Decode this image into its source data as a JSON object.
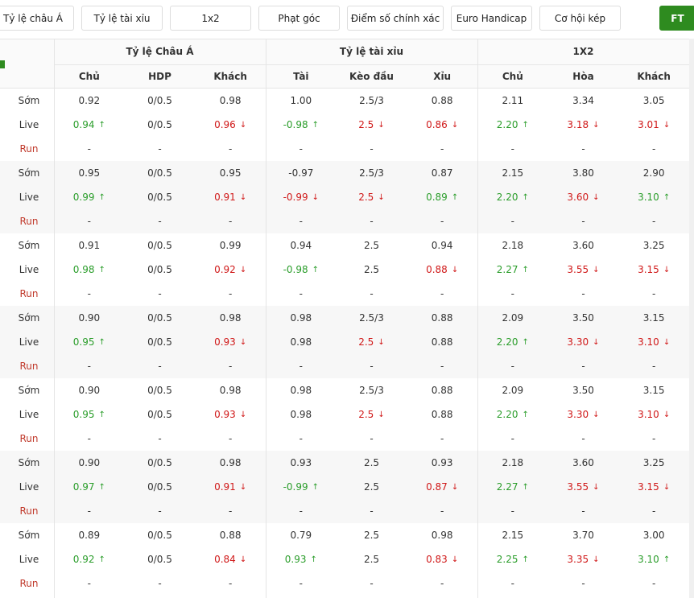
{
  "tabs": [
    "Tỷ lệ châu Á",
    "Tỷ lệ tài xỉu",
    "1x2",
    "Phạt góc",
    "Điểm số chính xác",
    "Euro Handicap",
    "Cơ hội kép"
  ],
  "ft_button": "FT",
  "groups": [
    "Tỷ lệ Châu Á",
    "Tỷ lệ tài xỉu",
    "1X2"
  ],
  "subheaders": [
    "Chủ",
    "HDP",
    "Khách",
    "Tài",
    "Kèo đầu",
    "Xỉu",
    "Chủ",
    "Hòa",
    "Khách"
  ],
  "blocks": [
    {
      "rows": [
        {
          "label": "Sớm",
          "cells": [
            "0.92",
            "0/0.5",
            "0.98",
            "1.00",
            "2.5/3",
            "0.88",
            "2.11",
            "3.34",
            "3.05"
          ]
        },
        {
          "label": "Live",
          "cells": [
            {
              "text": "0.94",
              "arrow": "↑"
            },
            "0/0.5",
            {
              "text": "0.96",
              "arrow": "↓"
            },
            {
              "text": "-0.98",
              "arrow": "↑"
            },
            {
              "text": "2.5",
              "arrow": "↓"
            },
            {
              "text": "0.86",
              "arrow": "↓"
            },
            {
              "text": "2.20",
              "arrow": "↑"
            },
            {
              "text": "3.18",
              "arrow": "↓"
            },
            {
              "text": "3.01",
              "arrow": "↓"
            }
          ]
        },
        {
          "label": "Run",
          "cells": [
            "-",
            "-",
            "-",
            "-",
            "-",
            "-",
            "-",
            "-",
            "-"
          ]
        }
      ]
    },
    {
      "rows": [
        {
          "label": "Sớm",
          "cells": [
            "0.95",
            "0/0.5",
            "0.95",
            "-0.97",
            "2.5/3",
            "0.87",
            "2.15",
            "3.80",
            "2.90"
          ]
        },
        {
          "label": "Live",
          "cells": [
            {
              "text": "0.99",
              "arrow": "↑"
            },
            "0/0.5",
            {
              "text": "0.91",
              "arrow": "↓"
            },
            {
              "text": "-0.99",
              "arrow": "↓"
            },
            {
              "text": "2.5",
              "arrow": "↓"
            },
            {
              "text": "0.89",
              "arrow": "↑"
            },
            {
              "text": "2.20",
              "arrow": "↑"
            },
            {
              "text": "3.60",
              "arrow": "↓"
            },
            {
              "text": "3.10",
              "arrow": "↑"
            }
          ]
        },
        {
          "label": "Run",
          "cells": [
            "-",
            "-",
            "-",
            "-",
            "-",
            "-",
            "-",
            "-",
            "-"
          ]
        }
      ]
    },
    {
      "rows": [
        {
          "label": "Sớm",
          "cells": [
            "0.91",
            "0/0.5",
            "0.99",
            "0.94",
            "2.5",
            "0.94",
            "2.18",
            "3.60",
            "3.25"
          ]
        },
        {
          "label": "Live",
          "cells": [
            {
              "text": "0.98",
              "arrow": "↑"
            },
            "0/0.5",
            {
              "text": "0.92",
              "arrow": "↓"
            },
            {
              "text": "-0.98",
              "arrow": "↑"
            },
            "2.5",
            {
              "text": "0.88",
              "arrow": "↓"
            },
            {
              "text": "2.27",
              "arrow": "↑"
            },
            {
              "text": "3.55",
              "arrow": "↓"
            },
            {
              "text": "3.15",
              "arrow": "↓"
            }
          ]
        },
        {
          "label": "Run",
          "cells": [
            "-",
            "-",
            "-",
            "-",
            "-",
            "-",
            "-",
            "-",
            "-"
          ]
        }
      ]
    },
    {
      "rows": [
        {
          "label": "Sớm",
          "cells": [
            "0.90",
            "0/0.5",
            "0.98",
            "0.98",
            "2.5/3",
            "0.88",
            "2.09",
            "3.50",
            "3.15"
          ]
        },
        {
          "label": "Live",
          "cells": [
            {
              "text": "0.95",
              "arrow": "↑"
            },
            "0/0.5",
            {
              "text": "0.93",
              "arrow": "↓"
            },
            "0.98",
            {
              "text": "2.5",
              "arrow": "↓"
            },
            "0.88",
            {
              "text": "2.20",
              "arrow": "↑"
            },
            {
              "text": "3.30",
              "arrow": "↓"
            },
            {
              "text": "3.10",
              "arrow": "↓"
            }
          ]
        },
        {
          "label": "Run",
          "cells": [
            "-",
            "-",
            "-",
            "-",
            "-",
            "-",
            "-",
            "-",
            "-"
          ]
        }
      ]
    },
    {
      "rows": [
        {
          "label": "Sớm",
          "cells": [
            "0.90",
            "0/0.5",
            "0.98",
            "0.98",
            "2.5/3",
            "0.88",
            "2.09",
            "3.50",
            "3.15"
          ]
        },
        {
          "label": "Live",
          "cells": [
            {
              "text": "0.95",
              "arrow": "↑"
            },
            "0/0.5",
            {
              "text": "0.93",
              "arrow": "↓"
            },
            "0.98",
            {
              "text": "2.5",
              "arrow": "↓"
            },
            "0.88",
            {
              "text": "2.20",
              "arrow": "↑"
            },
            {
              "text": "3.30",
              "arrow": "↓"
            },
            {
              "text": "3.10",
              "arrow": "↓"
            }
          ]
        },
        {
          "label": "Run",
          "cells": [
            "-",
            "-",
            "-",
            "-",
            "-",
            "-",
            "-",
            "-",
            "-"
          ]
        }
      ]
    },
    {
      "rows": [
        {
          "label": "Sớm",
          "cells": [
            "0.90",
            "0/0.5",
            "0.98",
            "0.93",
            "2.5",
            "0.93",
            "2.18",
            "3.60",
            "3.25"
          ]
        },
        {
          "label": "Live",
          "cells": [
            {
              "text": "0.97",
              "arrow": "↑"
            },
            "0/0.5",
            {
              "text": "0.91",
              "arrow": "↓"
            },
            {
              "text": "-0.99",
              "arrow": "↑"
            },
            "2.5",
            {
              "text": "0.87",
              "arrow": "↓"
            },
            {
              "text": "2.27",
              "arrow": "↑"
            },
            {
              "text": "3.55",
              "arrow": "↓"
            },
            {
              "text": "3.15",
              "arrow": "↓"
            }
          ]
        },
        {
          "label": "Run",
          "cells": [
            "-",
            "-",
            "-",
            "-",
            "-",
            "-",
            "-",
            "-",
            "-"
          ]
        }
      ]
    },
    {
      "rows": [
        {
          "label": "Sớm",
          "cells": [
            "0.89",
            "0/0.5",
            "0.88",
            "0.79",
            "2.5",
            "0.98",
            "2.15",
            "3.70",
            "3.00"
          ]
        },
        {
          "label": "Live",
          "cells": [
            {
              "text": "0.92",
              "arrow": "↑"
            },
            "0/0.5",
            {
              "text": "0.84",
              "arrow": "↓"
            },
            {
              "text": "0.93",
              "arrow": "↑"
            },
            "2.5",
            {
              "text": "0.83",
              "arrow": "↓"
            },
            {
              "text": "2.25",
              "arrow": "↑"
            },
            {
              "text": "3.35",
              "arrow": "↓"
            },
            {
              "text": "3.10",
              "arrow": "↑"
            }
          ]
        },
        {
          "label": "Run",
          "cells": [
            "-",
            "-",
            "-",
            "-",
            "-",
            "-",
            "-",
            "-",
            "-"
          ]
        }
      ]
    }
  ]
}
